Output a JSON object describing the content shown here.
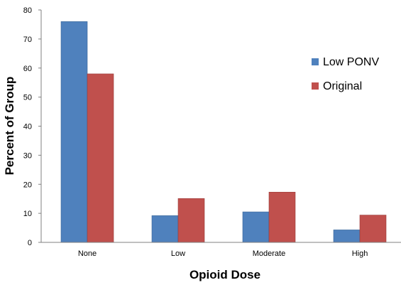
{
  "chart_data": {
    "type": "bar",
    "title": "",
    "xlabel": "Opioid Dose",
    "ylabel": "Percent of Group",
    "categories": [
      "None",
      "Low",
      "Moderate",
      "High"
    ],
    "ylim": [
      0,
      80
    ],
    "yticks": [
      0,
      10,
      20,
      30,
      40,
      50,
      60,
      70,
      80
    ],
    "grid": false,
    "legend_position": "right",
    "series": [
      {
        "name": "Low PONV",
        "color": "#4f81bd",
        "values": [
          76,
          9.2,
          10.5,
          4.3
        ]
      },
      {
        "name": "Original",
        "color": "#c0504d",
        "values": [
          58,
          15.1,
          17.3,
          9.4
        ]
      }
    ]
  }
}
